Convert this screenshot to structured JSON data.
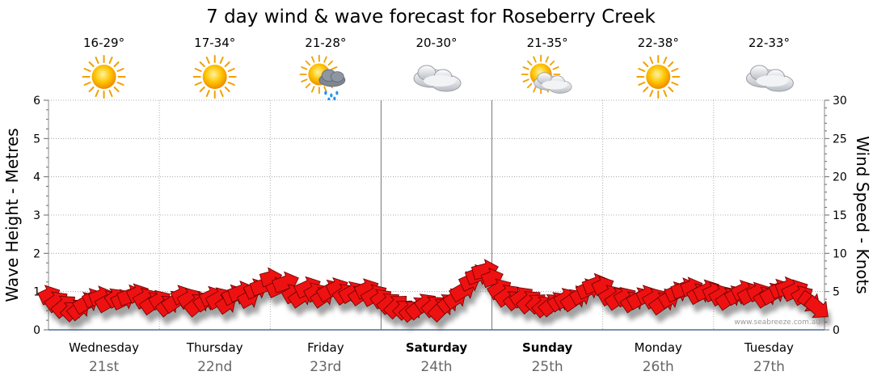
{
  "chart_data": {
    "type": "line",
    "title": "7 day wind & wave forecast for Roseberry Creek",
    "ylabel_left": "Wave Height - Metres",
    "ylabel_right": "Wind Speed - Knots",
    "ylim_left": [
      0,
      6
    ],
    "ylim_right": [
      0,
      30
    ],
    "yticks_left": [
      "0",
      "1",
      "2",
      "3",
      "4",
      "5",
      "6"
    ],
    "yticks_right": [
      "0",
      "5",
      "10",
      "15",
      "20",
      "25",
      "30"
    ],
    "grid": true,
    "credit": "www.seabreeze.com.au",
    "days": [
      {
        "name": "Wednesday",
        "date": "21st",
        "temp": "16-29°",
        "icon": "sun-icon",
        "bold": false
      },
      {
        "name": "Thursday",
        "date": "22nd",
        "temp": "17-34°",
        "icon": "sun-icon",
        "bold": false
      },
      {
        "name": "Friday",
        "date": "23rd",
        "temp": "21-28°",
        "icon": "sun-rain-cloud-icon",
        "bold": false
      },
      {
        "name": "Saturday",
        "date": "24th",
        "temp": "20-30°",
        "icon": "cloud-icon",
        "bold": true
      },
      {
        "name": "Sunday",
        "date": "25th",
        "temp": "21-35°",
        "icon": "sun-cloud-icon",
        "bold": true
      },
      {
        "name": "Monday",
        "date": "26th",
        "temp": "22-38°",
        "icon": "sun-icon",
        "bold": false
      },
      {
        "name": "Tuesday",
        "date": "27th",
        "temp": "22-33°",
        "icon": "cloud-icon",
        "bold": false
      }
    ],
    "series": [
      {
        "values": [
          4.6,
          3.8,
          3.2,
          2.6,
          2.8,
          3.6,
          4.2,
          4.4,
          3.8,
          4.3,
          4.0,
          4.5,
          4.8,
          4.2,
          3.6,
          4.0,
          3.3,
          3.8,
          4.6,
          4.2,
          3.4,
          3.8,
          4.4,
          4.2,
          3.5,
          4.6,
          5.0,
          4.2,
          5.4,
          5.8,
          6.8,
          5.6,
          6.2,
          4.8,
          4.4,
          5.6,
          5.0,
          4.4,
          5.2,
          5.6,
          4.8,
          5.0,
          4.6,
          5.4,
          4.6,
          4.2,
          3.6,
          3.2,
          2.8,
          2.6,
          3.0,
          3.6,
          3.2,
          2.8,
          3.6,
          4.2,
          5.2,
          6.4,
          7.2,
          7.8,
          6.8,
          5.4,
          4.6,
          4.0,
          4.4,
          3.8,
          3.6,
          3.2,
          3.4,
          3.8,
          4.2,
          4.0,
          4.6,
          5.4,
          6.0,
          5.8,
          4.6,
          4.2,
          4.4,
          3.8,
          4.2,
          4.6,
          4.2,
          3.6,
          4.2,
          5.0,
          5.4,
          5.6,
          4.8,
          5.2,
          5.0,
          4.6,
          4.2,
          4.6,
          5.2,
          4.8,
          5.0,
          4.4,
          4.8,
          5.4,
          5.6,
          5.2,
          4.6,
          3.6,
          2.8
        ],
        "directions": [
          -25,
          -35,
          -40,
          -45,
          -40,
          -30,
          -25,
          -20,
          -30,
          -35,
          -25,
          -20,
          -25,
          -30,
          -35,
          -30,
          -40,
          -35,
          -25,
          -30,
          -40,
          -35,
          -25,
          -30,
          -35,
          -25,
          -20,
          -30,
          -25,
          -20,
          -15,
          -25,
          -20,
          -30,
          -35,
          -25,
          -30,
          -35,
          -30,
          -25,
          -35,
          -30,
          -35,
          -25,
          -30,
          -35,
          -40,
          -45,
          -45,
          -40,
          -40,
          -35,
          -40,
          -45,
          -40,
          -35,
          -30,
          -25,
          -20,
          -15,
          -20,
          -30,
          -35,
          -40,
          -35,
          -40,
          -45,
          -40,
          -40,
          -35,
          -30,
          -35,
          -30,
          -25,
          -20,
          -25,
          -30,
          -35,
          -30,
          -35,
          -30,
          -25,
          -30,
          -35,
          -30,
          -25,
          -20,
          -20,
          -30,
          -25,
          -25,
          -30,
          -35,
          -30,
          -25,
          -30,
          -25,
          -35,
          -30,
          -25,
          -20,
          -25,
          -30,
          35,
          40
        ],
        "color": "#ee1111",
        "shadow": "#555555"
      }
    ]
  }
}
